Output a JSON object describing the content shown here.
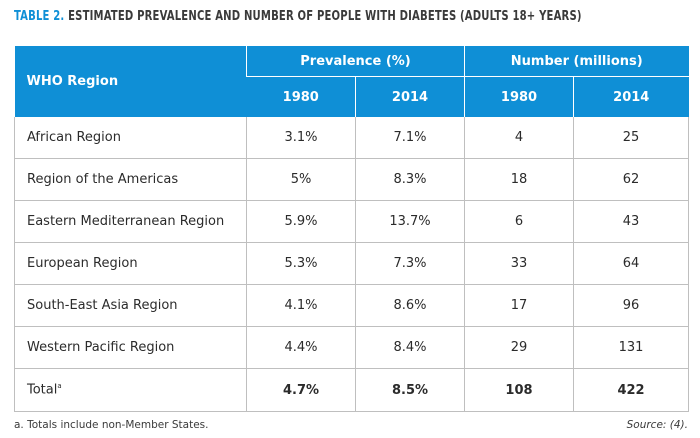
{
  "title": {
    "number": "TABLE 2.",
    "text": "ESTIMATED PREVALENCE AND NUMBER OF PEOPLE WITH DIABETES (ADULTS 18+ YEARS)"
  },
  "header": {
    "region": "WHO Region",
    "prevalence": "Prevalence (%)",
    "number": "Number (millions)",
    "years": [
      "1980",
      "2014",
      "1980",
      "2014"
    ]
  },
  "rows": [
    {
      "region": "African Region",
      "prev_1980": "3.1%",
      "prev_2014": "7.1%",
      "num_1980": "4",
      "num_2014": "25"
    },
    {
      "region": "Region of the Americas",
      "prev_1980": "5%",
      "prev_2014": "8.3%",
      "num_1980": "18",
      "num_2014": "62"
    },
    {
      "region": "Eastern Mediterranean Region",
      "prev_1980": "5.9%",
      "prev_2014": "13.7%",
      "num_1980": "6",
      "num_2014": "43"
    },
    {
      "region": "European Region",
      "prev_1980": "5.3%",
      "prev_2014": "7.3%",
      "num_1980": "33",
      "num_2014": "64"
    },
    {
      "region": "South-East Asia Region",
      "prev_1980": "4.1%",
      "prev_2014": "8.6%",
      "num_1980": "17",
      "num_2014": "96"
    },
    {
      "region": "Western Pacific Region",
      "prev_1980": "4.4%",
      "prev_2014": "8.4%",
      "num_1980": "29",
      "num_2014": "131"
    }
  ],
  "total": {
    "label": "Total",
    "footnote_marker": "a",
    "prev_1980": "4.7%",
    "prev_2014": "8.5%",
    "num_1980": "108",
    "num_2014": "422"
  },
  "footnote": "a. Totals include non-Member States.",
  "source": "Source: (4)."
}
